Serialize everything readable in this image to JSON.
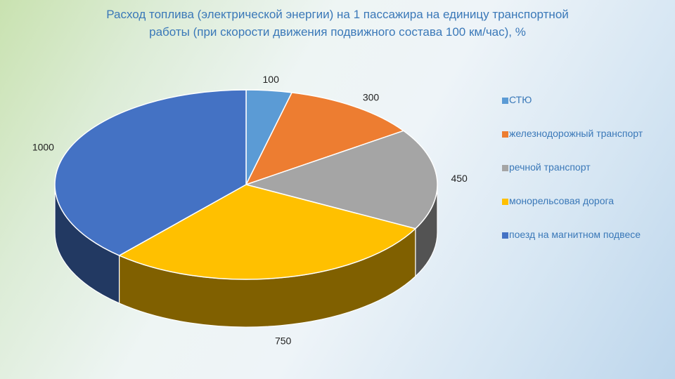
{
  "title": {
    "line1": "Расход топлива (электрической энергии) на 1 пассажира на единицу транспортной",
    "line2": "работы (при скорости движения подвижного состава 100 км/час), %"
  },
  "chart_data": {
    "type": "pie",
    "style": "3d",
    "title": "Расход топлива (электрической энергии) на 1 пассажира на единицу транспортной работы (при скорости движения подвижного состава 100 км/час), %",
    "categories": [
      "СТЮ",
      "железнодорожный транспорт",
      "речной транспорт",
      "монорельсовая дорога",
      "поезд на магнитном подвесе"
    ],
    "values": [
      100,
      300,
      450,
      750,
      1000
    ],
    "data_labels": [
      "100",
      "300",
      "450",
      "750",
      "1000"
    ],
    "colors": [
      "#5b9bd5",
      "#ed7d31",
      "#a5a5a5",
      "#ffc000",
      "#4472c4"
    ],
    "legend": "right"
  }
}
